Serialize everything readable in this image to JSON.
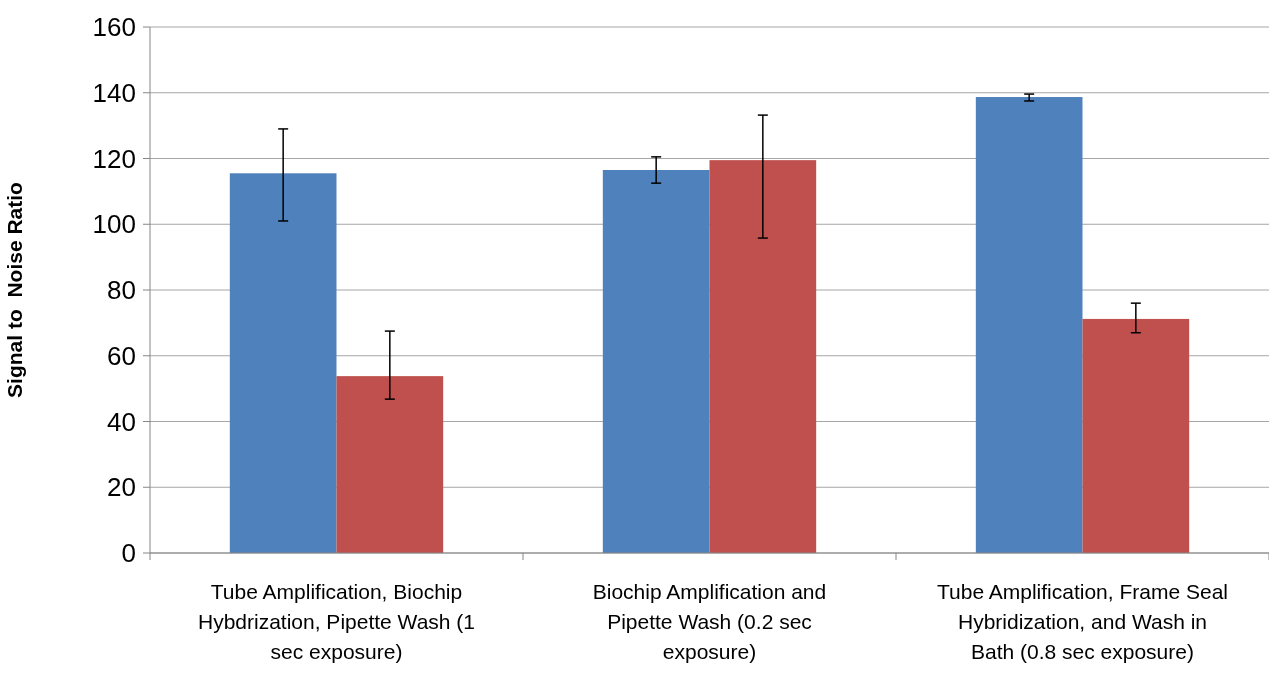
{
  "chart_data": {
    "type": "bar",
    "ylabel": "Signal to  Noise Ratio",
    "categories": [
      "Tube Amplification, Biochip Hybdrization, Pipette Wash (1 sec exposure)",
      "Biochip Amplification and Pipette Wash (0.2 sec exposure)",
      "Tube Amplification, Frame Seal Hybridization, and Wash in Bath (0.8 sec exposure)"
    ],
    "series": [
      {
        "color": "#4f81bd",
        "values": [
          115.5,
          116.5,
          138.7
        ],
        "errors": [
          [
            101,
            129
          ],
          [
            112.5,
            120.5
          ],
          [
            137.5,
            139.6
          ]
        ]
      },
      {
        "color": "#c0504d",
        "values": [
          53.8,
          119.5,
          71.2
        ],
        "errors": [
          [
            46.8,
            67.5
          ],
          [
            95.8,
            133.2
          ],
          [
            67,
            76
          ]
        ]
      }
    ],
    "ylim": [
      0,
      160
    ],
    "yticks": [
      0,
      20,
      40,
      60,
      80,
      100,
      120,
      140,
      160
    ],
    "grid": "y"
  }
}
